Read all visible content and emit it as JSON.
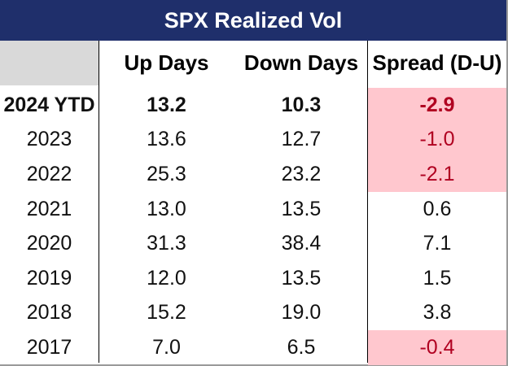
{
  "title": "SPX Realized Vol",
  "headers": [
    "",
    "Up Days",
    "Down Days",
    "Spread (D-U)"
  ],
  "rows": [
    {
      "year": "2024 YTD",
      "up": "13.2",
      "down": "10.3",
      "spread": "-2.9",
      "bold": true,
      "highlight": true,
      "negative": true
    },
    {
      "year": "2023",
      "up": "13.6",
      "down": "12.7",
      "spread": "-1.0",
      "bold": false,
      "highlight": true,
      "negative": true
    },
    {
      "year": "2022",
      "up": "25.3",
      "down": "23.2",
      "spread": "-2.1",
      "bold": false,
      "highlight": true,
      "negative": true
    },
    {
      "year": "2021",
      "up": "13.0",
      "down": "13.5",
      "spread": "0.6",
      "bold": false,
      "highlight": false,
      "negative": false
    },
    {
      "year": "2020",
      "up": "31.3",
      "down": "38.4",
      "spread": "7.1",
      "bold": false,
      "highlight": false,
      "negative": false
    },
    {
      "year": "2019",
      "up": "12.0",
      "down": "13.5",
      "spread": "1.5",
      "bold": false,
      "highlight": false,
      "negative": false
    },
    {
      "year": "2018",
      "up": "15.2",
      "down": "19.0",
      "spread": "3.8",
      "bold": false,
      "highlight": false,
      "negative": false
    },
    {
      "year": "2017",
      "up": "7.0",
      "down": "6.5",
      "spread": "-0.4",
      "bold": false,
      "highlight": true,
      "negative": true
    }
  ],
  "colors": {
    "title_bg": "#1f2f6b",
    "header_bg": "#d9d9d9",
    "highlight_bg": "#ffc7ce",
    "negative_text": "#b00020"
  }
}
